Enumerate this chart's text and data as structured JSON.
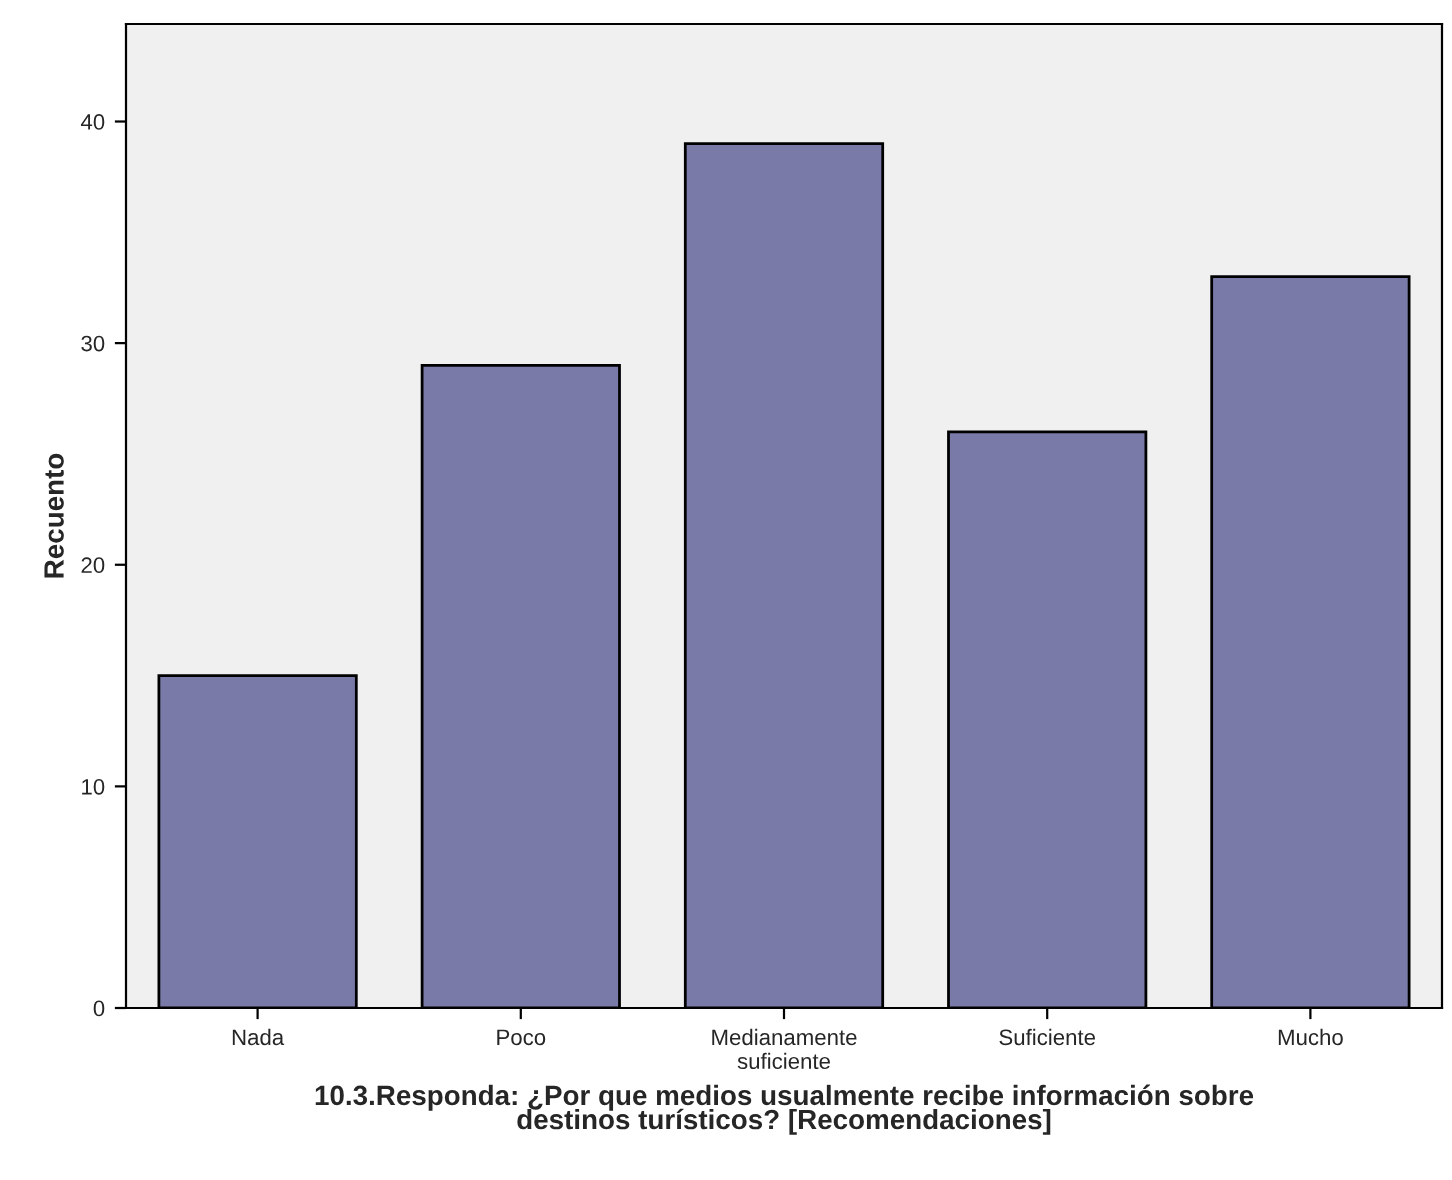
{
  "chart_data": {
    "type": "bar",
    "categories": [
      "Nada",
      "Poco",
      "Medianamente\nsuficiente",
      "Suficiente",
      "Mucho"
    ],
    "values": [
      15,
      29,
      39,
      26,
      33
    ],
    "color": "#7a7aa8",
    "xlabel": "10.3.Responda: ¿Por que medios usualmente recibe información sobre\ndestinos turísticos? [Recomendaciones]",
    "ylabel": "Recuento",
    "ylim": [
      0,
      44.4
    ],
    "yticks": [
      0,
      10,
      20,
      30,
      40
    ],
    "grid": false,
    "legend": false
  }
}
